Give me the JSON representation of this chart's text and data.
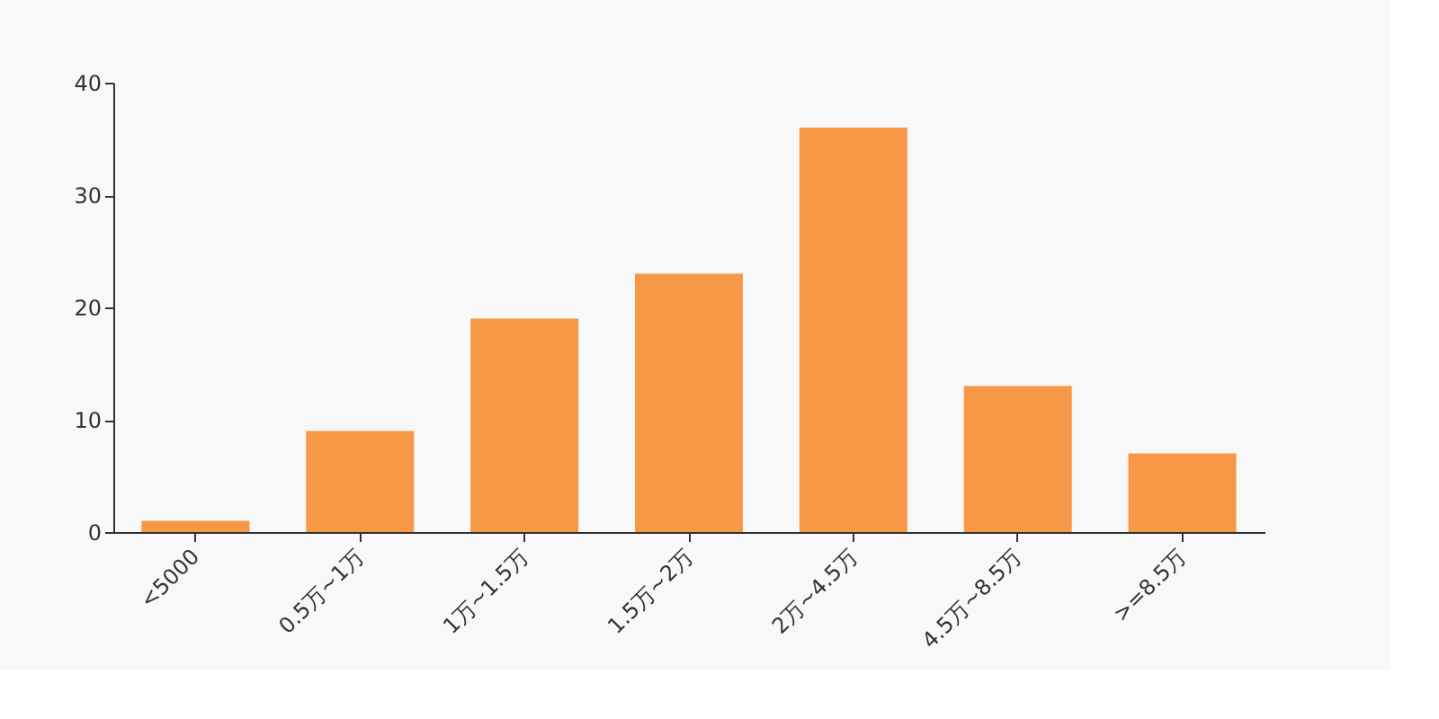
{
  "chart_data": {
    "type": "bar",
    "categories": [
      "<5000",
      "0.5万~1万",
      "1万~1.5万",
      "1.5万~2万",
      "2万~4.5万",
      "4.5万~8.5万",
      ">=8.5万"
    ],
    "values": [
      1,
      9,
      19,
      23,
      36,
      13,
      7
    ],
    "color": "#f79847",
    "ylim": [
      0,
      40
    ],
    "yticks": [
      0,
      10,
      20,
      30,
      40
    ],
    "grid": false
  }
}
